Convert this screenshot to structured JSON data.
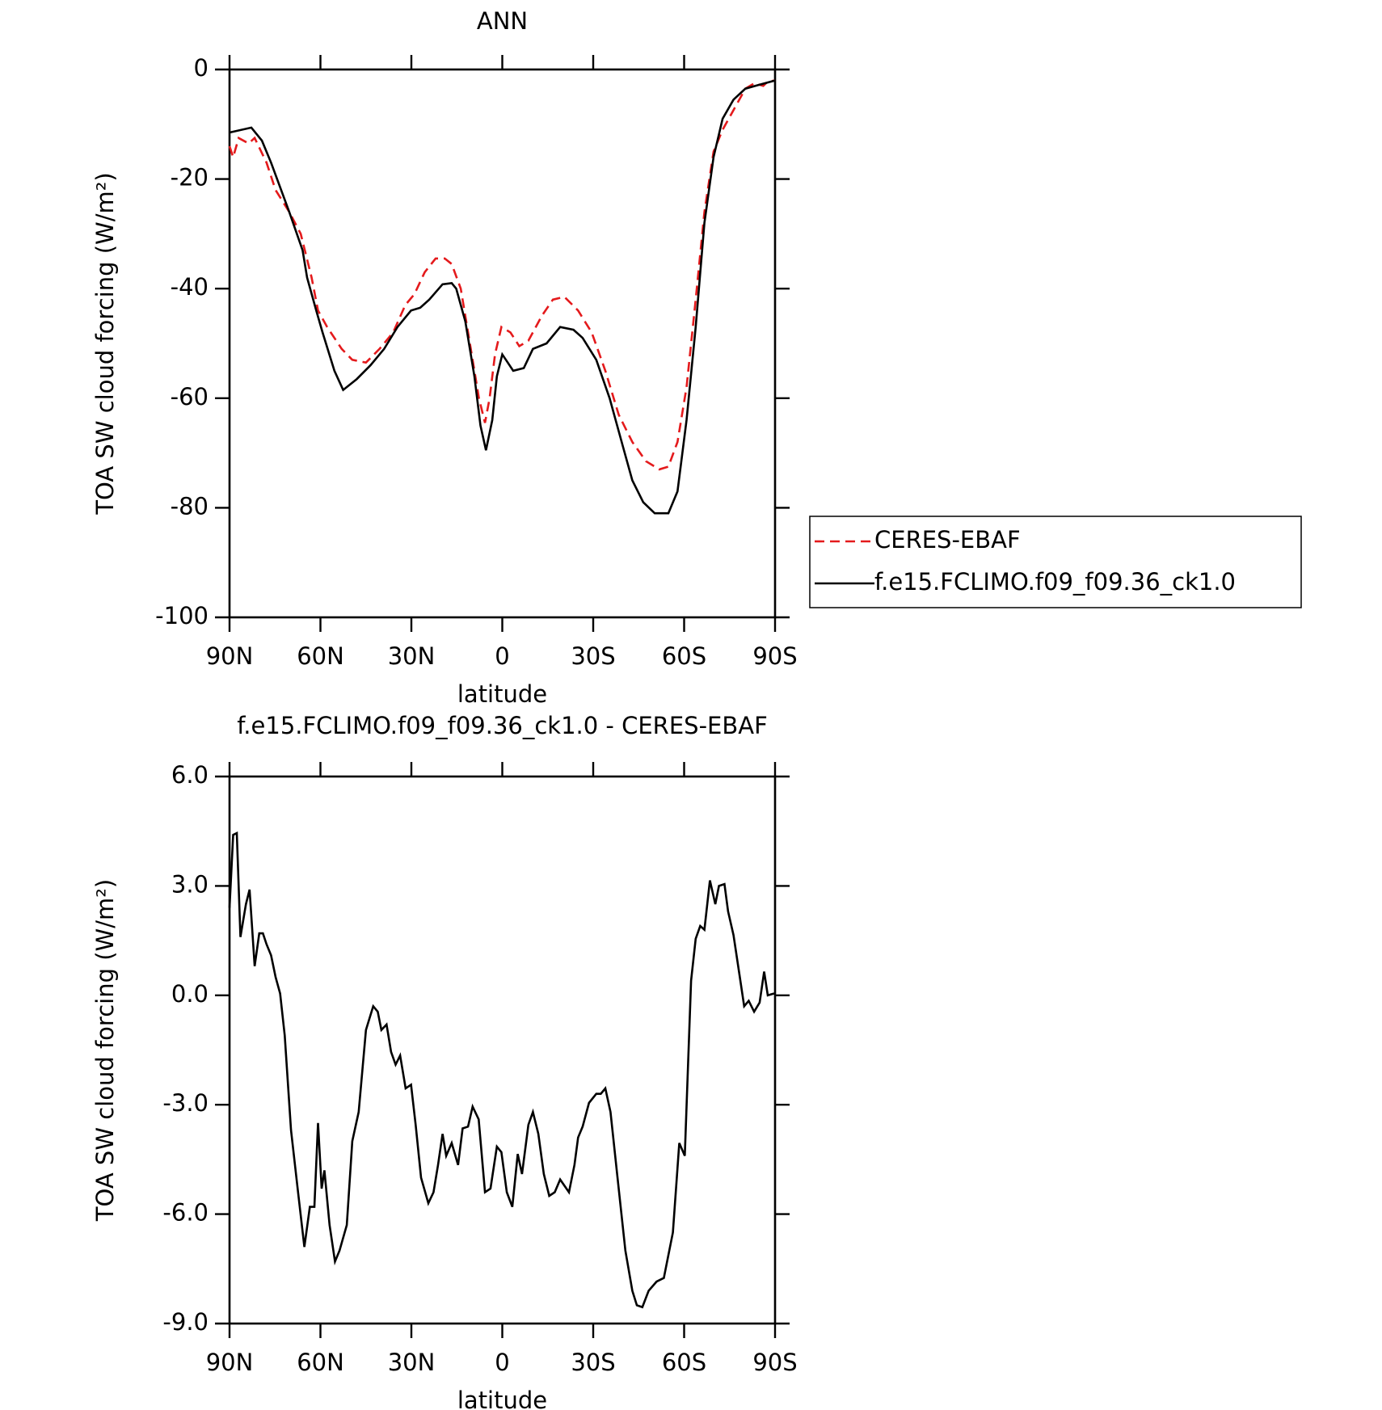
{
  "chart_data": [
    {
      "type": "line",
      "title": "ANN",
      "xlabel": "latitude",
      "ylabel": "TOA SW cloud forcing (W/m²)",
      "xlim": [
        90,
        -90
      ],
      "ylim": [
        -100,
        0
      ],
      "xticks": [
        {
          "value": 90,
          "label": "90N"
        },
        {
          "value": 60,
          "label": "60N"
        },
        {
          "value": 30,
          "label": "30N"
        },
        0,
        {
          "value": -30,
          "label": "30S"
        },
        {
          "value": -60,
          "label": "60S"
        },
        {
          "value": -90,
          "label": "90S"
        }
      ],
      "yticks": [
        0,
        -20,
        -40,
        -60,
        -80,
        -100
      ],
      "legend": "right",
      "series": [
        {
          "name": "CERES-EBAF",
          "color": "#e41a1c",
          "dash": true,
          "x": [
            90,
            88.8,
            87,
            83.7,
            81.7,
            77.8,
            74.8,
            70.3,
            66.5,
            62.9,
            60.8,
            57.8,
            53,
            49.5,
            45,
            40.5,
            36,
            32,
            29,
            25.6,
            22,
            19,
            16.7,
            13.7,
            10.7,
            7.7,
            5.7,
            4.2,
            2.4,
            0.3,
            -2.7,
            -5.6,
            -8.6,
            -13,
            -16.7,
            -20.5,
            -25,
            -29.5,
            -34,
            -38.4,
            -42.9,
            -47.4,
            -51.8,
            -54.8,
            -57.8,
            -60.8,
            -63.8,
            -66.7,
            -69.7,
            -72.7,
            -77.2,
            -80.2,
            -83.2,
            -86.1,
            -87.6,
            -90
          ],
          "values": [
            -14,
            -16,
            -12.5,
            -13.5,
            -12.5,
            -17,
            -22,
            -26,
            -30,
            -38,
            -44,
            -47,
            -51,
            -53,
            -53.5,
            -51,
            -48,
            -43,
            -41,
            -37,
            -34.5,
            -34.5,
            -35.5,
            -40,
            -50,
            -60,
            -64.5,
            -60,
            -52,
            -47,
            -48,
            -50.5,
            -49.5,
            -45,
            -42,
            -41.5,
            -44,
            -48,
            -55,
            -63,
            -68,
            -71.5,
            -73,
            -72.5,
            -68,
            -58,
            -42,
            -26,
            -15,
            -11,
            -6.5,
            -3.5,
            -2.5,
            -3,
            -2.2,
            -2
          ]
        },
        {
          "name": "f.e15.FCLIMO.f09_f09.36_ck1.0",
          "color": "#000000",
          "dash": false,
          "x": [
            90,
            82.8,
            79.3,
            76.3,
            70.3,
            65.9,
            64.4,
            61.4,
            59.3,
            55.4,
            52.5,
            48,
            43.5,
            39,
            34.6,
            30.1,
            27.1,
            24.1,
            19.7,
            16.7,
            15.2,
            12.2,
            9.2,
            7.2,
            5.4,
            3.3,
            1.8,
            0,
            -1.2,
            -3.6,
            -7.1,
            -10.1,
            -14.6,
            -19.1,
            -23.5,
            -26.5,
            -31,
            -35.4,
            -39.9,
            -42.9,
            -46.5,
            -50.3,
            -54.8,
            -57.8,
            -60.8,
            -63.8,
            -66.7,
            -69.7,
            -72.7,
            -76.3,
            -80.2,
            -84.7,
            -90
          ],
          "values": [
            -11.5,
            -10.6,
            -13,
            -17,
            -26,
            -33,
            -38,
            -44,
            -48,
            -55,
            -58.5,
            -56.5,
            -54,
            -51,
            -47,
            -44,
            -43.5,
            -42,
            -39.2,
            -39,
            -40,
            -46,
            -56,
            -65,
            -69.5,
            -64,
            -56,
            -52,
            -53,
            -55,
            -54.5,
            -51,
            -50,
            -47,
            -47.5,
            -49,
            -53,
            -60,
            -69,
            -75,
            -79,
            -81,
            -81,
            -77,
            -64,
            -47,
            -28,
            -16,
            -9,
            -5.5,
            -3.5,
            -2.8,
            -2
          ]
        }
      ]
    },
    {
      "type": "line",
      "title": "f.e15.FCLIMO.f09_f09.36_ck1.0 - CERES-EBAF",
      "xlabel": "latitude",
      "ylabel": "TOA SW cloud forcing (W/m²)",
      "xlim": [
        90,
        -90
      ],
      "ylim": [
        -9,
        6
      ],
      "xticks": [
        {
          "value": 90,
          "label": "90N"
        },
        {
          "value": 60,
          "label": "60N"
        },
        {
          "value": 30,
          "label": "30N"
        },
        0,
        {
          "value": -30,
          "label": "30S"
        },
        {
          "value": -60,
          "label": "60S"
        },
        {
          "value": -90,
          "label": "90S"
        }
      ],
      "yticks": [
        {
          "value": 6,
          "label": "6.0"
        },
        {
          "value": 3,
          "label": "3.0"
        },
        {
          "value": 0,
          "label": "0.0"
        },
        {
          "value": -3,
          "label": "-3.0"
        },
        {
          "value": -6,
          "label": "-6.0"
        },
        {
          "value": -9,
          "label": "-9.0"
        }
      ],
      "series": [
        {
          "color": "#000000",
          "dash": false,
          "x": [
            90,
            88.8,
            87.6,
            86.4,
            84.6,
            83.4,
            81.7,
            80.2,
            79,
            77.8,
            76.3,
            74.8,
            73.3,
            71.8,
            69.7,
            67.4,
            65.3,
            63.5,
            62,
            60.8,
            59.6,
            58.7,
            57,
            55.2,
            53.7,
            51.3,
            49.5,
            47.4,
            45,
            42.6,
            41.1,
            39.9,
            38.2,
            36.7,
            35.2,
            33.7,
            31.9,
            30.1,
            28.6,
            26.8,
            24.4,
            22.7,
            21.2,
            19.7,
            18.5,
            16.7,
            14.6,
            13.1,
            11.3,
            9.8,
            7.8,
            5.7,
            3.9,
            1.8,
            0.3,
            -1.5,
            -3.3,
            -5.1,
            -6.5,
            -8.6,
            -10.1,
            -11.9,
            -13.7,
            -15.5,
            -17.3,
            -19.1,
            -22,
            -23.8,
            -25,
            -26.5,
            -28.6,
            -31,
            -32.5,
            -34,
            -35.7,
            -37.9,
            -40.6,
            -42.9,
            -44.4,
            -46.2,
            -48.3,
            -50.9,
            -53.3,
            -56.3,
            -58.4,
            -60.2,
            -62.3,
            -63.8,
            -65.3,
            -66.7,
            -68.5,
            -70.3,
            -71.5,
            -73.3,
            -74.5,
            -76.3,
            -78.1,
            -79.8,
            -81.3,
            -83.1,
            -84.9,
            -86.4,
            -87.6,
            -89.7
          ],
          "values": [
            2.4,
            4.4,
            4.45,
            1.6,
            2.5,
            2.9,
            0.8,
            1.7,
            1.7,
            1.4,
            1.1,
            0.5,
            0.05,
            -1.1,
            -3.7,
            -5.4,
            -6.9,
            -5.8,
            -5.8,
            -3.5,
            -5.3,
            -4.8,
            -6.3,
            -7.3,
            -7,
            -6.3,
            -4,
            -3.2,
            -0.95,
            -0.3,
            -0.45,
            -0.95,
            -0.8,
            -1.55,
            -1.9,
            -1.65,
            -2.55,
            -2.45,
            -3.55,
            -5,
            -5.7,
            -5.4,
            -4.65,
            -3.8,
            -4.4,
            -4.05,
            -4.65,
            -3.65,
            -3.6,
            -3.05,
            -3.4,
            -5.4,
            -5.3,
            -4.15,
            -4.3,
            -5.4,
            -5.8,
            -4.35,
            -4.9,
            -3.55,
            -3.2,
            -3.8,
            -4.9,
            -5.5,
            -5.4,
            -5.05,
            -5.4,
            -4.65,
            -3.9,
            -3.6,
            -2.95,
            -2.7,
            -2.7,
            -2.55,
            -3.2,
            -4.9,
            -7,
            -8.1,
            -8.5,
            -8.55,
            -8.1,
            -7.85,
            -7.75,
            -6.5,
            -4.05,
            -4.4,
            0.4,
            1.55,
            1.9,
            1.8,
            3.15,
            2.5,
            3,
            3.05,
            2.3,
            1.65,
            0.65,
            -0.3,
            -0.15,
            -0.45,
            -0.2,
            0.65,
            0,
            0.05
          ]
        }
      ]
    }
  ]
}
